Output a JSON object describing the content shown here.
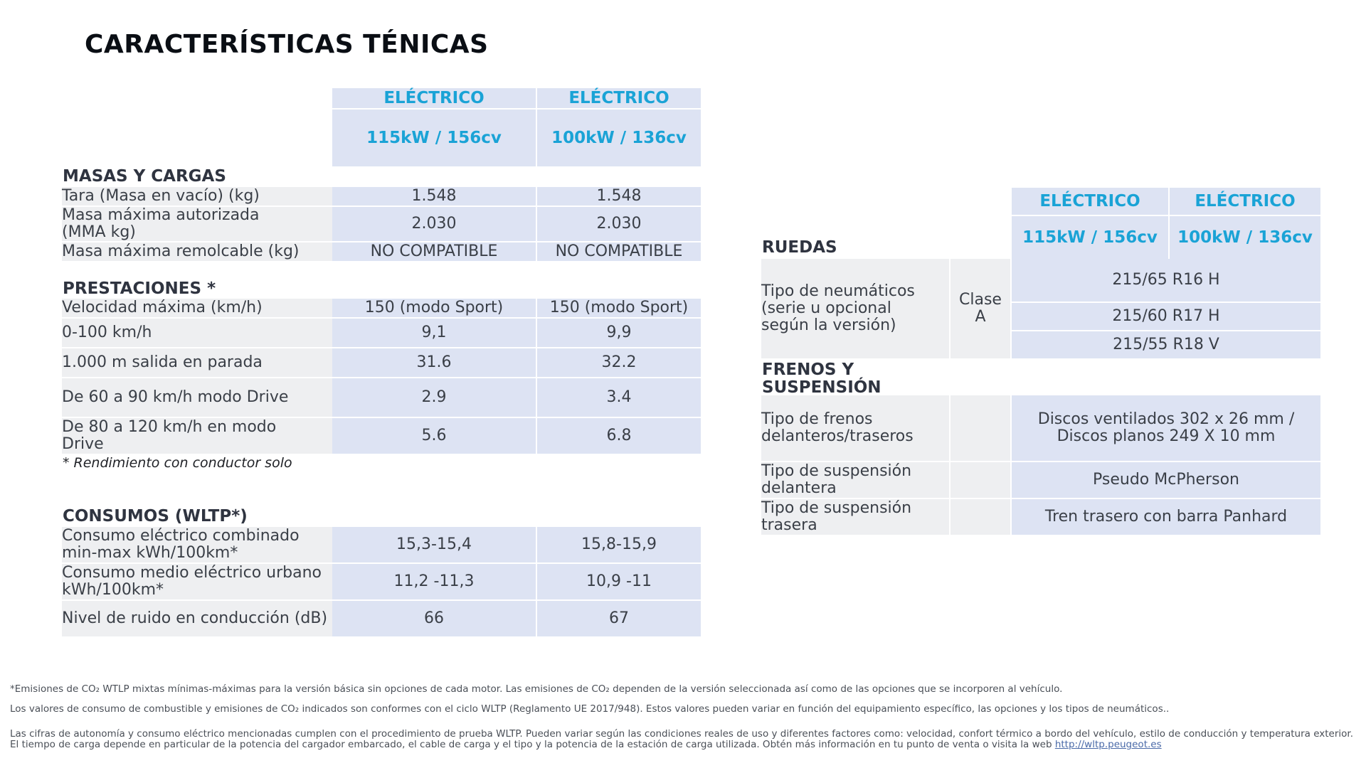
{
  "title": "CARACTERÍSTICAS TÉNICAS",
  "columns": {
    "type1": "ELÉCTRICO",
    "type2": "ELÉCTRICO",
    "power1": "115kW / 156cv",
    "power2": "100kW / 136cv"
  },
  "masas": {
    "heading": "MASAS Y CARGAS",
    "rows": [
      {
        "label": "Tara (Masa en vacío) (kg)",
        "v1": "1.548",
        "v2": "1.548"
      },
      {
        "label": "Masa máxima autorizada (MMA kg)",
        "v1": "2.030",
        "v2": "2.030"
      },
      {
        "label": "Masa máxima remolcable (kg)",
        "v1": "NO COMPATIBLE",
        "v2": "NO COMPATIBLE"
      }
    ]
  },
  "prestaciones": {
    "heading": "PRESTACIONES *",
    "rows": [
      {
        "label": "Velocidad máxima (km/h)",
        "v1": "150 (modo Sport)",
        "v2": "150 (modo Sport)"
      },
      {
        "label": "0-100 km/h",
        "v1": "9,1",
        "v2": "9,9"
      },
      {
        "label": "1.000 m salida en parada",
        "v1": "31.6",
        "v2": "32.2"
      },
      {
        "label": "De 60 a 90 km/h modo Drive",
        "v1": "2.9",
        "v2": "3.4"
      },
      {
        "label": "De 80 a 120 km/h en modo Drive",
        "v1": "5.6",
        "v2": "6.8"
      }
    ],
    "note": "* Rendimiento con conductor solo"
  },
  "consumos": {
    "heading": "CONSUMOS (WLTP*)",
    "rows": [
      {
        "label": "Consumo eléctrico combinado min-max kWh/100km*",
        "v1": "15,3-15,4",
        "v2": "15,8-15,9"
      },
      {
        "label": "Consumo medio eléctrico urbano kWh/100km*",
        "v1": "11,2 -11,3",
        "v2": "10,9 -11"
      },
      {
        "label": "Nivel de ruido en conducción (dB)",
        "v1": "66",
        "v2": "67"
      }
    ]
  },
  "ruedas": {
    "heading": "RUEDAS",
    "label": "Tipo de neumáticos (serie u opcional según la versión)",
    "clase": "Clase A",
    "tyres": [
      "215/65 R16 H",
      "215/60 R17 H",
      "215/55 R18 V"
    ]
  },
  "frenos": {
    "heading": "FRENOS Y SUSPENSIÓN",
    "rows": [
      {
        "label": "Tipo de frenos delanteros/traseros",
        "value": "Discos ventilados 302 x 26 mm / Discos planos 249 X 10 mm"
      },
      {
        "label": "Tipo de suspensión delantera",
        "value": "Pseudo McPherson"
      },
      {
        "label": "Tipo de suspensión trasera",
        "value": "Tren trasero con barra Panhard"
      }
    ]
  },
  "footnotes": {
    "f1": "*Emisiones de CO₂ WTLP mixtas mínimas-máximas para la versión básica sin opciones de cada motor. Las emisiones de CO₂ dependen de la versión seleccionada así como de las opciones que se incorporen al vehículo.",
    "f2": "Los valores de consumo de combustible y emisiones de CO₂ indicados son conformes con el ciclo WLTP (Reglamento UE 2017/948). Estos valores pueden variar en función del equipamiento específico, las opciones y los tipos de neumáticos..",
    "f3": "Las cifras de autonomía y consumo eléctrico mencionadas cumplen con el procedimiento de prueba WLTP. Pueden variar según las condiciones reales de uso y diferentes factores como: velocidad, confort térmico a bordo del vehículo, estilo de conducción y temperatura exterior. El tiempo de carga depende en particular de la potencia del cargador embarcado, el cable de carga y el tipo y la potencia de la estación de carga utilizada. Obtén más información en tu punto de venta o visita la web",
    "link": "http://wltp.peugeot.es"
  }
}
